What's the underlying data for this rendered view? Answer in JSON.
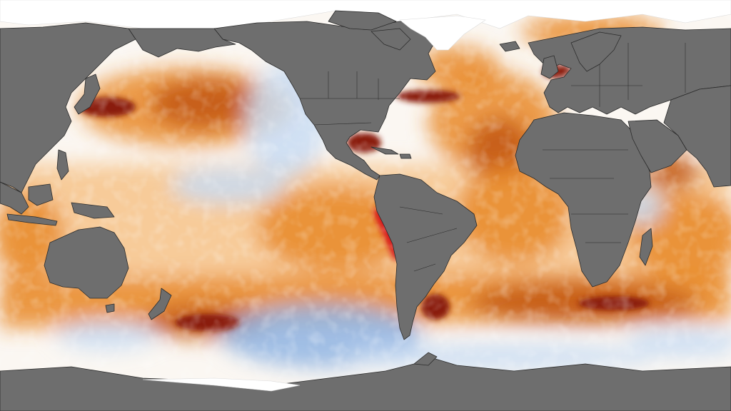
{
  "map": {
    "type": "sea-surface-temperature-anomaly",
    "projection": "equirectangular",
    "colors": {
      "land": "#6e6e6e",
      "land_border": "#2b2b2b",
      "ice": "#ffffff",
      "ocean_neutral": "#fbf7f2",
      "warm_light": "#f6c38a",
      "warm": "#e98a2a",
      "warm_strong": "#c2560f",
      "warm_extreme": "#8a1f07",
      "hot_spot": "#d7191c",
      "cool_light": "#c8dcf3",
      "cool": "#8fb4e3",
      "cool_strong": "#3d6fbf"
    }
  }
}
